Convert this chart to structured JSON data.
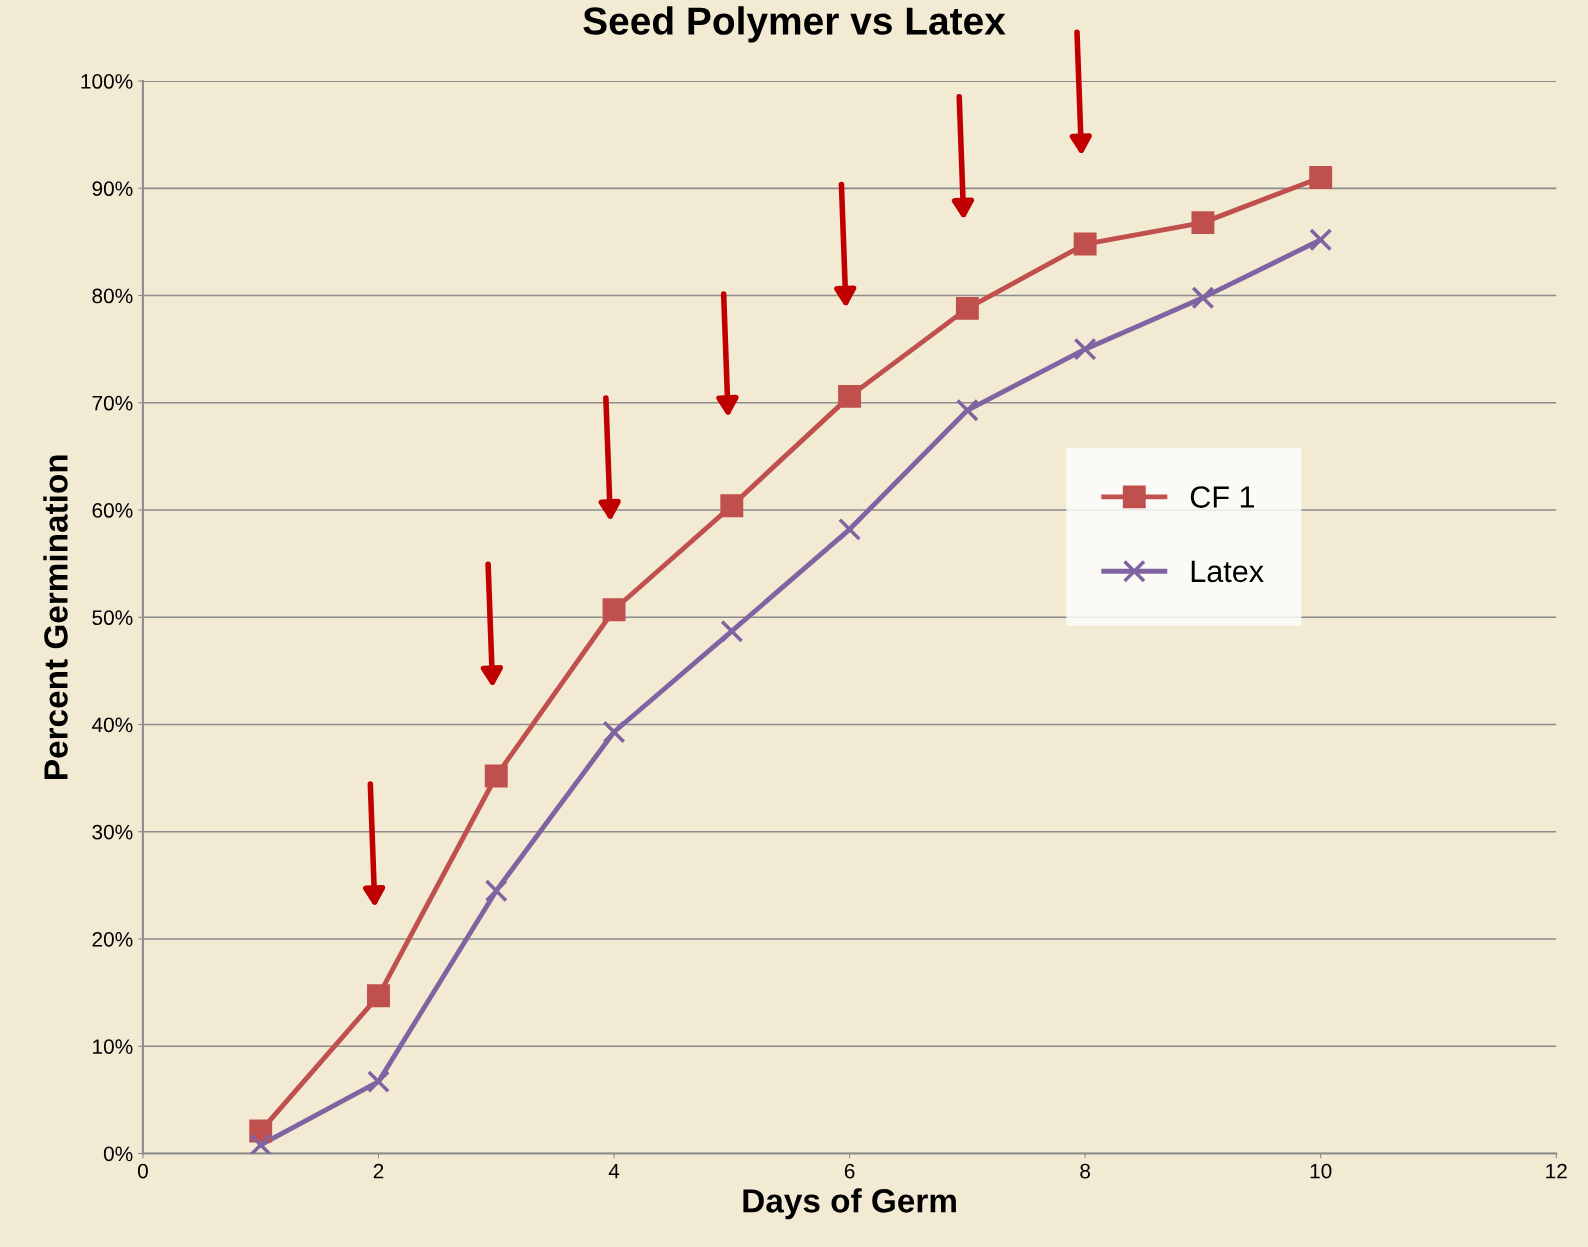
{
  "chart_data": {
    "type": "line",
    "title": "Seed Polymer vs Latex",
    "xlabel": "Days of Germ",
    "ylabel": "Percent Germination",
    "x": [
      1,
      2,
      3,
      4,
      5,
      6,
      7,
      8,
      9,
      10
    ],
    "series": [
      {
        "name": "CF 1",
        "color": "#c0504d",
        "marker": "square",
        "values": [
          2.1,
          14.7,
          35.2,
          50.7,
          60.4,
          70.6,
          78.8,
          84.8,
          86.8,
          91.0
        ]
      },
      {
        "name": "Latex",
        "color": "#8064a2",
        "marker": "cross",
        "values": [
          0.8,
          6.7,
          24.5,
          39.3,
          48.7,
          58.2,
          69.3,
          75.0,
          79.8,
          85.2
        ]
      }
    ],
    "xlim": [
      0,
      12
    ],
    "xticks": [
      0,
      2,
      4,
      6,
      8,
      10,
      12
    ],
    "ylim": [
      0,
      100
    ],
    "yticks": [
      {
        "value": 0,
        "label": "0%"
      },
      {
        "value": 10,
        "label": "10%"
      },
      {
        "value": 20,
        "label": "20%"
      },
      {
        "value": 30,
        "label": "30%"
      },
      {
        "value": 40,
        "label": "40%"
      },
      {
        "value": 50,
        "label": "50%"
      },
      {
        "value": 60,
        "label": "60%"
      },
      {
        "value": 70,
        "label": "70%"
      },
      {
        "value": 80,
        "label": "80%"
      },
      {
        "value": 90,
        "label": "90%"
      },
      {
        "value": 100,
        "label": "100%"
      }
    ],
    "grid": "y",
    "legend": "right",
    "line_style": "solid"
  }
}
